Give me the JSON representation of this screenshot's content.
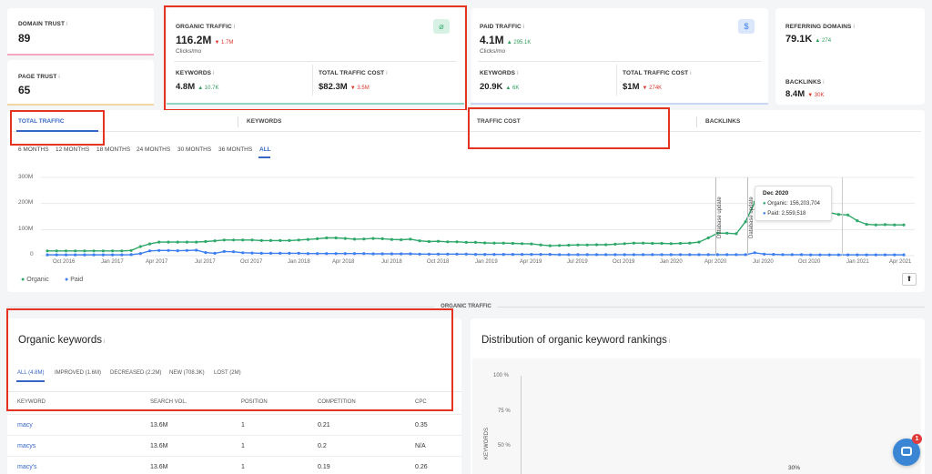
{
  "metrics": {
    "domain_trust": {
      "label": "DOMAIN TRUST",
      "value": "89",
      "color": "#f7a6c1"
    },
    "page_trust": {
      "label": "PAGE TRUST",
      "value": "65",
      "color": "#f1d7a5"
    },
    "organic": {
      "label": "ORGANIC TRAFFIC",
      "value": "116.2M",
      "change": "1.7M",
      "unit": "Clicks/mo",
      "keywords_label": "KEYWORDS",
      "keywords_value": "4.8M",
      "keywords_change": "10.7K",
      "cost_label": "TOTAL TRAFFIC COST",
      "cost_value": "$82.3M",
      "cost_change": "3.5M",
      "color": "#8fd4c2"
    },
    "paid": {
      "label": "PAID TRAFFIC",
      "value": "4.1M",
      "change": "295.1K",
      "unit": "Clicks/mo",
      "keywords_label": "KEYWORDS",
      "keywords_value": "20.9K",
      "keywords_change": "6K",
      "cost_label": "TOTAL TRAFFIC COST",
      "cost_value": "$1M",
      "cost_change": "274K",
      "color": "#c9d7f6"
    },
    "referring": {
      "label": "REFERRING DOMAINS",
      "value": "79.1K",
      "change": "274",
      "backlinks_label": "BACKLINKS",
      "backlinks_value": "8.4M",
      "backlinks_change": "30K"
    }
  },
  "tabs": [
    "TOTAL TRAFFIC",
    "KEYWORDS",
    "TRAFFIC COST",
    "BACKLINKS"
  ],
  "ranges": [
    "6 MONTHS",
    "12 MONTHS",
    "18 MONTHS",
    "24 MONTHS",
    "30 MONTHS",
    "36 MONTHS",
    "ALL"
  ],
  "chart_data": {
    "type": "line",
    "y_ticks": [
      "300M",
      "200M",
      "100M",
      "0"
    ],
    "ylim": [
      0,
      300
    ],
    "x_ticks": [
      "Oct 2016",
      "Jan 2017",
      "Apr 2017",
      "Jul 2017",
      "Oct 2017",
      "Jan 2018",
      "Apr 2018",
      "Jul 2018",
      "Oct 2018",
      "Jan 2019",
      "Apr 2019",
      "Jul 2019",
      "Oct 2019",
      "Jan 2020",
      "Apr 2020",
      "Jul 2020",
      "Oct 2020",
      "Jan 2021",
      "Apr 2021"
    ],
    "series": [
      {
        "name": "Organic",
        "color": "#2fa86a",
        "values": [
          18,
          18,
          18,
          18,
          18,
          18,
          18,
          18,
          18,
          20,
          35,
          45,
          52,
          52,
          52,
          52,
          52,
          54,
          57,
          60,
          60,
          60,
          60,
          58,
          58,
          58,
          58,
          60,
          62,
          65,
          68,
          68,
          66,
          63,
          64,
          66,
          65,
          62,
          61,
          63,
          57,
          54,
          55,
          53,
          53,
          51,
          51,
          49,
          48,
          48,
          47,
          46,
          45,
          41,
          38,
          39,
          40,
          41,
          41,
          42,
          42,
          44,
          46,
          48,
          48,
          47,
          47,
          46,
          47,
          48,
          52,
          68,
          86,
          86,
          84,
          130,
          205,
          182,
          180,
          178,
          175,
          172,
          172,
          170,
          165,
          158,
          156,
          134,
          120,
          118,
          119,
          118,
          118
        ]
      },
      {
        "name": "Paid",
        "color": "#3d7ef0",
        "values": [
          3,
          3,
          3,
          3,
          3,
          3,
          3,
          3,
          3,
          4,
          8,
          18,
          20,
          20,
          19,
          20,
          21,
          12,
          9,
          16,
          15,
          11,
          10,
          9,
          9,
          9,
          9,
          9,
          8,
          8,
          8,
          8,
          8,
          8,
          8,
          7,
          7,
          7,
          7,
          7,
          6,
          6,
          6,
          6,
          6,
          6,
          5,
          5,
          5,
          5,
          5,
          5,
          5,
          5,
          5,
          4,
          4,
          4,
          4,
          4,
          4,
          4,
          4,
          4,
          4,
          4,
          4,
          4,
          4,
          4,
          4,
          4,
          4,
          4,
          4,
          4,
          11,
          6,
          5,
          4,
          4,
          4,
          3,
          3,
          3,
          3,
          3,
          3,
          3,
          3,
          3,
          3,
          3
        ]
      }
    ],
    "annotations": [
      "Database update",
      "Database update"
    ],
    "tooltip": {
      "title": "Dec 2020",
      "organic": "Organic: 156,203,704",
      "paid": "Paid: 2,559,518"
    },
    "legend": [
      "Organic",
      "Paid"
    ]
  },
  "section_title": "ORGANIC TRAFFIC",
  "keywords_panel": {
    "title": "Organic keywords",
    "tabs": [
      "ALL (4.8M)",
      "IMPROVED (1.6M)",
      "DECREASED (2.2M)",
      "NEW (708.3K)",
      "LOST (2M)"
    ],
    "columns": [
      "KEYWORD",
      "SEARCH VOL.",
      "POSITION",
      "COMPETITION",
      "CPC"
    ],
    "rows": [
      [
        "macy",
        "13.6M",
        "1",
        "0.21",
        "0.35"
      ],
      [
        "macys",
        "13.6M",
        "1",
        "0.2",
        "N/A"
      ],
      [
        "macy's",
        "13.6M",
        "1",
        "0.19",
        "0.26"
      ]
    ]
  },
  "distribution_panel": {
    "title": "Distribution of organic keyword rankings",
    "y_ticks": [
      "100 %",
      "75 %",
      "50 %"
    ],
    "ylabel": "KEYWORDS",
    "bar_label": "30%"
  },
  "chat_badge": "1"
}
